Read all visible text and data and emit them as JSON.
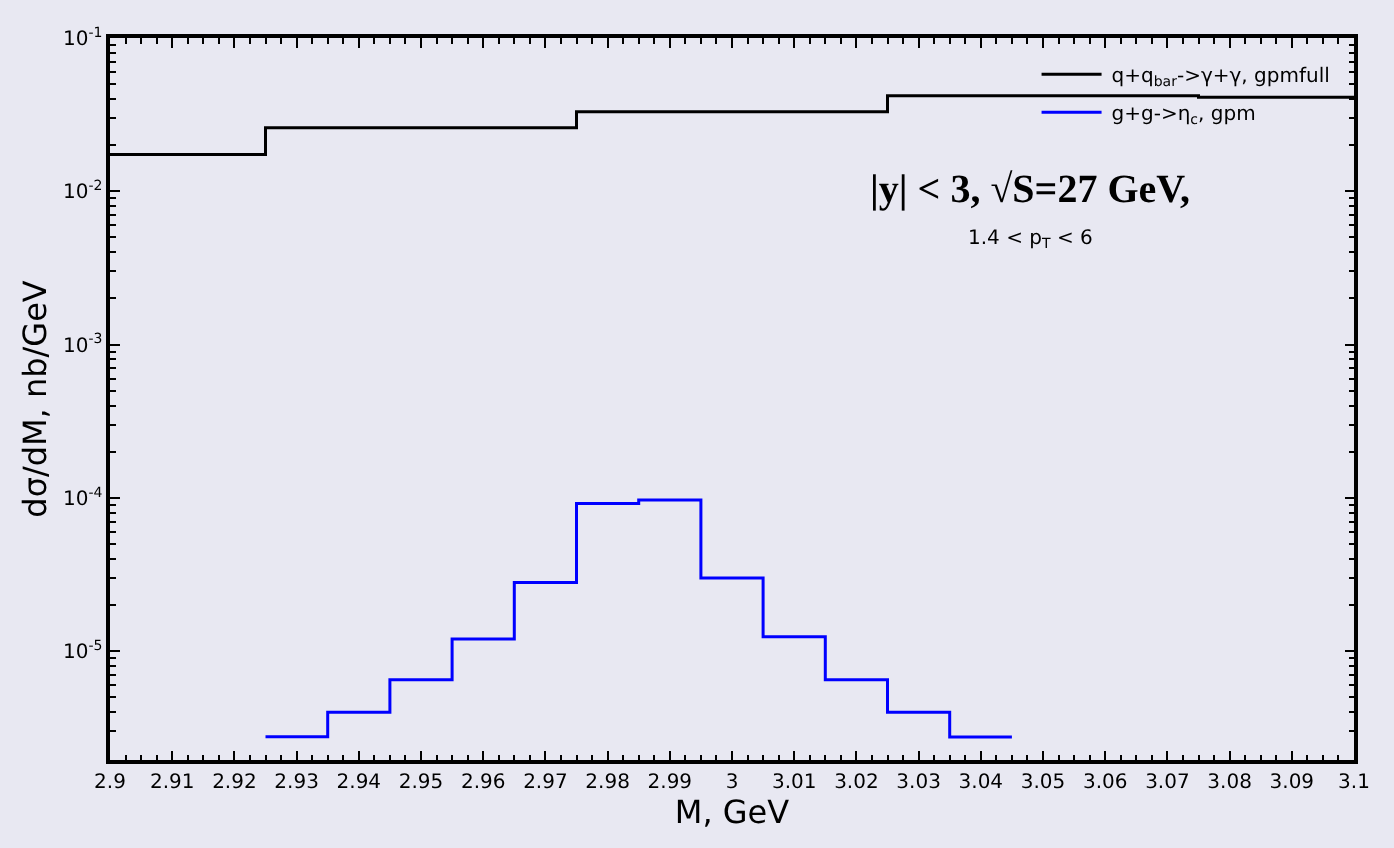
{
  "chart_data": {
    "type": "step",
    "xlabel": "M, GeV",
    "ylabel": "dσ/dM, nb/GeV",
    "log": "y",
    "grid": false,
    "legend": "top right",
    "xlim": [
      2.9,
      3.1
    ],
    "xticks": [
      2.9,
      2.91,
      2.92,
      2.93,
      2.94,
      2.95,
      2.96,
      2.97,
      2.98,
      2.99,
      3,
      3.01,
      3.02,
      3.03,
      3.04,
      3.05,
      3.06,
      3.07,
      3.08,
      3.09,
      3.1
    ],
    "ylim": [
      1.95e-06,
      0.1
    ],
    "yticks": [
      {
        "value": 1e-05,
        "label": "10$^{-5}$"
      },
      {
        "value": 0.0001,
        "label": "10$^{-4}$"
      },
      {
        "value": 0.001,
        "label": "10$^{-3}$"
      },
      {
        "value": 0.01,
        "label": "10$^{-2}$"
      },
      {
        "value": 0.1,
        "label": "10$^{-1}$"
      }
    ],
    "annotations": [
      "|y| < 3, √S=27 GeV,",
      "1.4 < p$_{T}$ < 6"
    ],
    "series": [
      {
        "name": "q+q$_{bar}$->γ+γ, gpmfull",
        "color": "#000000",
        "x": [
          2.9,
          2.925,
          2.975,
          3.025,
          3.075,
          3.1
        ],
        "values": [
          0.0174,
          0.026,
          0.033,
          0.042,
          0.041,
          0.041
        ]
      },
      {
        "name": "g+g->η$_{c}$, gpm",
        "color": "#0000ff",
        "x": [
          2.925,
          2.935,
          2.945,
          2.955,
          2.965,
          2.975,
          2.985,
          2.995,
          3.005,
          3.015,
          3.025,
          3.035,
          3.045
        ],
        "values": [
          2.77e-06,
          4e-06,
          6.5e-06,
          1.2e-05,
          2.8e-05,
          9.2e-05,
          9.7e-05,
          3e-05,
          1.24e-05,
          6.5e-06,
          4e-06,
          2.75e-06,
          2.75e-06
        ]
      }
    ]
  }
}
